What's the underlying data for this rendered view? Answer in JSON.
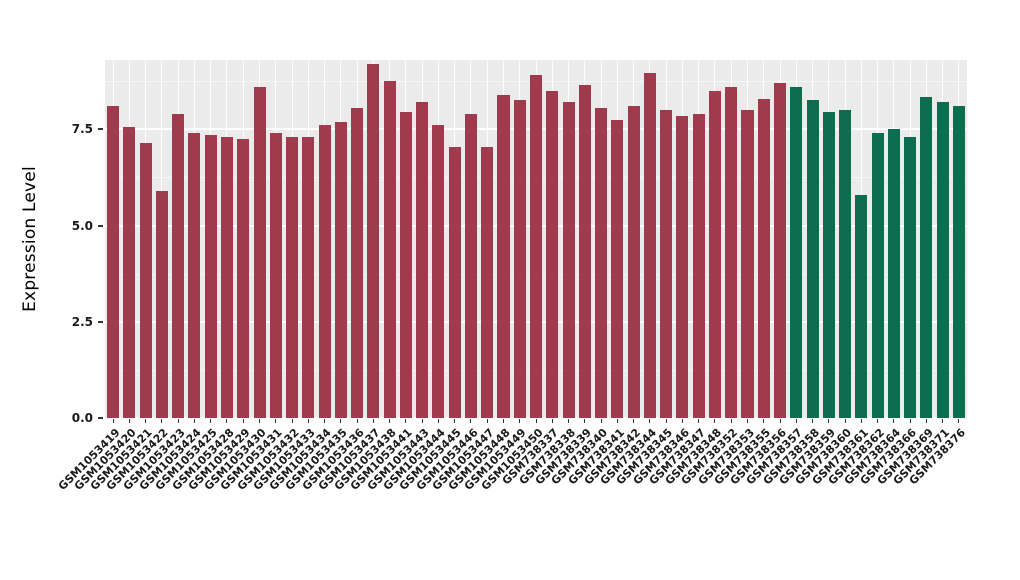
{
  "chart_data": {
    "type": "bar",
    "title": "",
    "xlabel": "",
    "ylabel": "Expression Level",
    "ylim": [
      0,
      9.3
    ],
    "grid": true,
    "legend": "none",
    "panel_background": "#EBEBEB",
    "gridline_color": "#FFFFFF",
    "axis": {
      "tick_color": "#333333",
      "text_color": "#1A1A1A",
      "label_color": "#1A1A1A"
    },
    "group_colors": {
      "red": "#A03B4D",
      "green": "#0C6E4F"
    },
    "yticks": [
      {
        "label": "0.0",
        "value": 0.0
      },
      {
        "label": "2.5",
        "value": 2.5
      },
      {
        "label": "5.0",
        "value": 5.0
      },
      {
        "label": "7.5",
        "value": 7.5
      }
    ],
    "minor_gridlines": [
      1.25,
      3.75,
      6.25,
      8.75
    ],
    "bars": [
      {
        "label": "GSM1053419",
        "value": 8.1,
        "group": "red"
      },
      {
        "label": "GSM1053420",
        "value": 7.55,
        "group": "red"
      },
      {
        "label": "GSM1053421",
        "value": 7.15,
        "group": "red"
      },
      {
        "label": "GSM1053422",
        "value": 5.9,
        "group": "red"
      },
      {
        "label": "GSM1053423",
        "value": 7.9,
        "group": "red"
      },
      {
        "label": "GSM1053424",
        "value": 7.4,
        "group": "red"
      },
      {
        "label": "GSM1053425",
        "value": 7.35,
        "group": "red"
      },
      {
        "label": "GSM1053428",
        "value": 7.3,
        "group": "red"
      },
      {
        "label": "GSM1053429",
        "value": 7.25,
        "group": "red"
      },
      {
        "label": "GSM1053430",
        "value": 8.6,
        "group": "red"
      },
      {
        "label": "GSM1053431",
        "value": 7.4,
        "group": "red"
      },
      {
        "label": "GSM1053432",
        "value": 7.3,
        "group": "red"
      },
      {
        "label": "GSM1053433",
        "value": 7.3,
        "group": "red"
      },
      {
        "label": "GSM1053434",
        "value": 7.6,
        "group": "red"
      },
      {
        "label": "GSM1053435",
        "value": 7.7,
        "group": "red"
      },
      {
        "label": "GSM1053436",
        "value": 8.05,
        "group": "red"
      },
      {
        "label": "GSM1053437",
        "value": 9.2,
        "group": "red"
      },
      {
        "label": "GSM1053438",
        "value": 8.75,
        "group": "red"
      },
      {
        "label": "GSM1053441",
        "value": 7.95,
        "group": "red"
      },
      {
        "label": "GSM1053443",
        "value": 8.2,
        "group": "red"
      },
      {
        "label": "GSM1053444",
        "value": 7.6,
        "group": "red"
      },
      {
        "label": "GSM1053445",
        "value": 7.05,
        "group": "red"
      },
      {
        "label": "GSM1053446",
        "value": 7.9,
        "group": "red"
      },
      {
        "label": "GSM1053447",
        "value": 7.05,
        "group": "red"
      },
      {
        "label": "GSM1053448",
        "value": 8.4,
        "group": "red"
      },
      {
        "label": "GSM1053449",
        "value": 8.25,
        "group": "red"
      },
      {
        "label": "GSM1053450",
        "value": 8.9,
        "group": "red"
      },
      {
        "label": "GSM738337",
        "value": 8.5,
        "group": "red"
      },
      {
        "label": "GSM738338",
        "value": 8.2,
        "group": "red"
      },
      {
        "label": "GSM738339",
        "value": 8.65,
        "group": "red"
      },
      {
        "label": "GSM738340",
        "value": 8.05,
        "group": "red"
      },
      {
        "label": "GSM738341",
        "value": 7.75,
        "group": "red"
      },
      {
        "label": "GSM738342",
        "value": 8.1,
        "group": "red"
      },
      {
        "label": "GSM738344",
        "value": 8.95,
        "group": "red"
      },
      {
        "label": "GSM738345",
        "value": 8.0,
        "group": "red"
      },
      {
        "label": "GSM738346",
        "value": 7.85,
        "group": "red"
      },
      {
        "label": "GSM738347",
        "value": 7.9,
        "group": "red"
      },
      {
        "label": "GSM738348",
        "value": 8.5,
        "group": "red"
      },
      {
        "label": "GSM738352",
        "value": 8.6,
        "group": "red"
      },
      {
        "label": "GSM738353",
        "value": 8.0,
        "group": "red"
      },
      {
        "label": "GSM738355",
        "value": 8.3,
        "group": "red"
      },
      {
        "label": "GSM738356",
        "value": 8.7,
        "group": "red"
      },
      {
        "label": "GSM738357",
        "value": 8.6,
        "group": "green"
      },
      {
        "label": "GSM738358",
        "value": 8.25,
        "group": "green"
      },
      {
        "label": "GSM738359",
        "value": 7.95,
        "group": "green"
      },
      {
        "label": "GSM738360",
        "value": 8.0,
        "group": "green"
      },
      {
        "label": "GSM738361",
        "value": 5.8,
        "group": "green"
      },
      {
        "label": "GSM738362",
        "value": 7.4,
        "group": "green"
      },
      {
        "label": "GSM738364",
        "value": 7.5,
        "group": "green"
      },
      {
        "label": "GSM738366",
        "value": 7.3,
        "group": "green"
      },
      {
        "label": "GSM738369",
        "value": 8.35,
        "group": "green"
      },
      {
        "label": "GSM738371",
        "value": 8.2,
        "group": "green"
      },
      {
        "label": "GSM738376",
        "value": 8.1,
        "group": "green"
      }
    ]
  }
}
